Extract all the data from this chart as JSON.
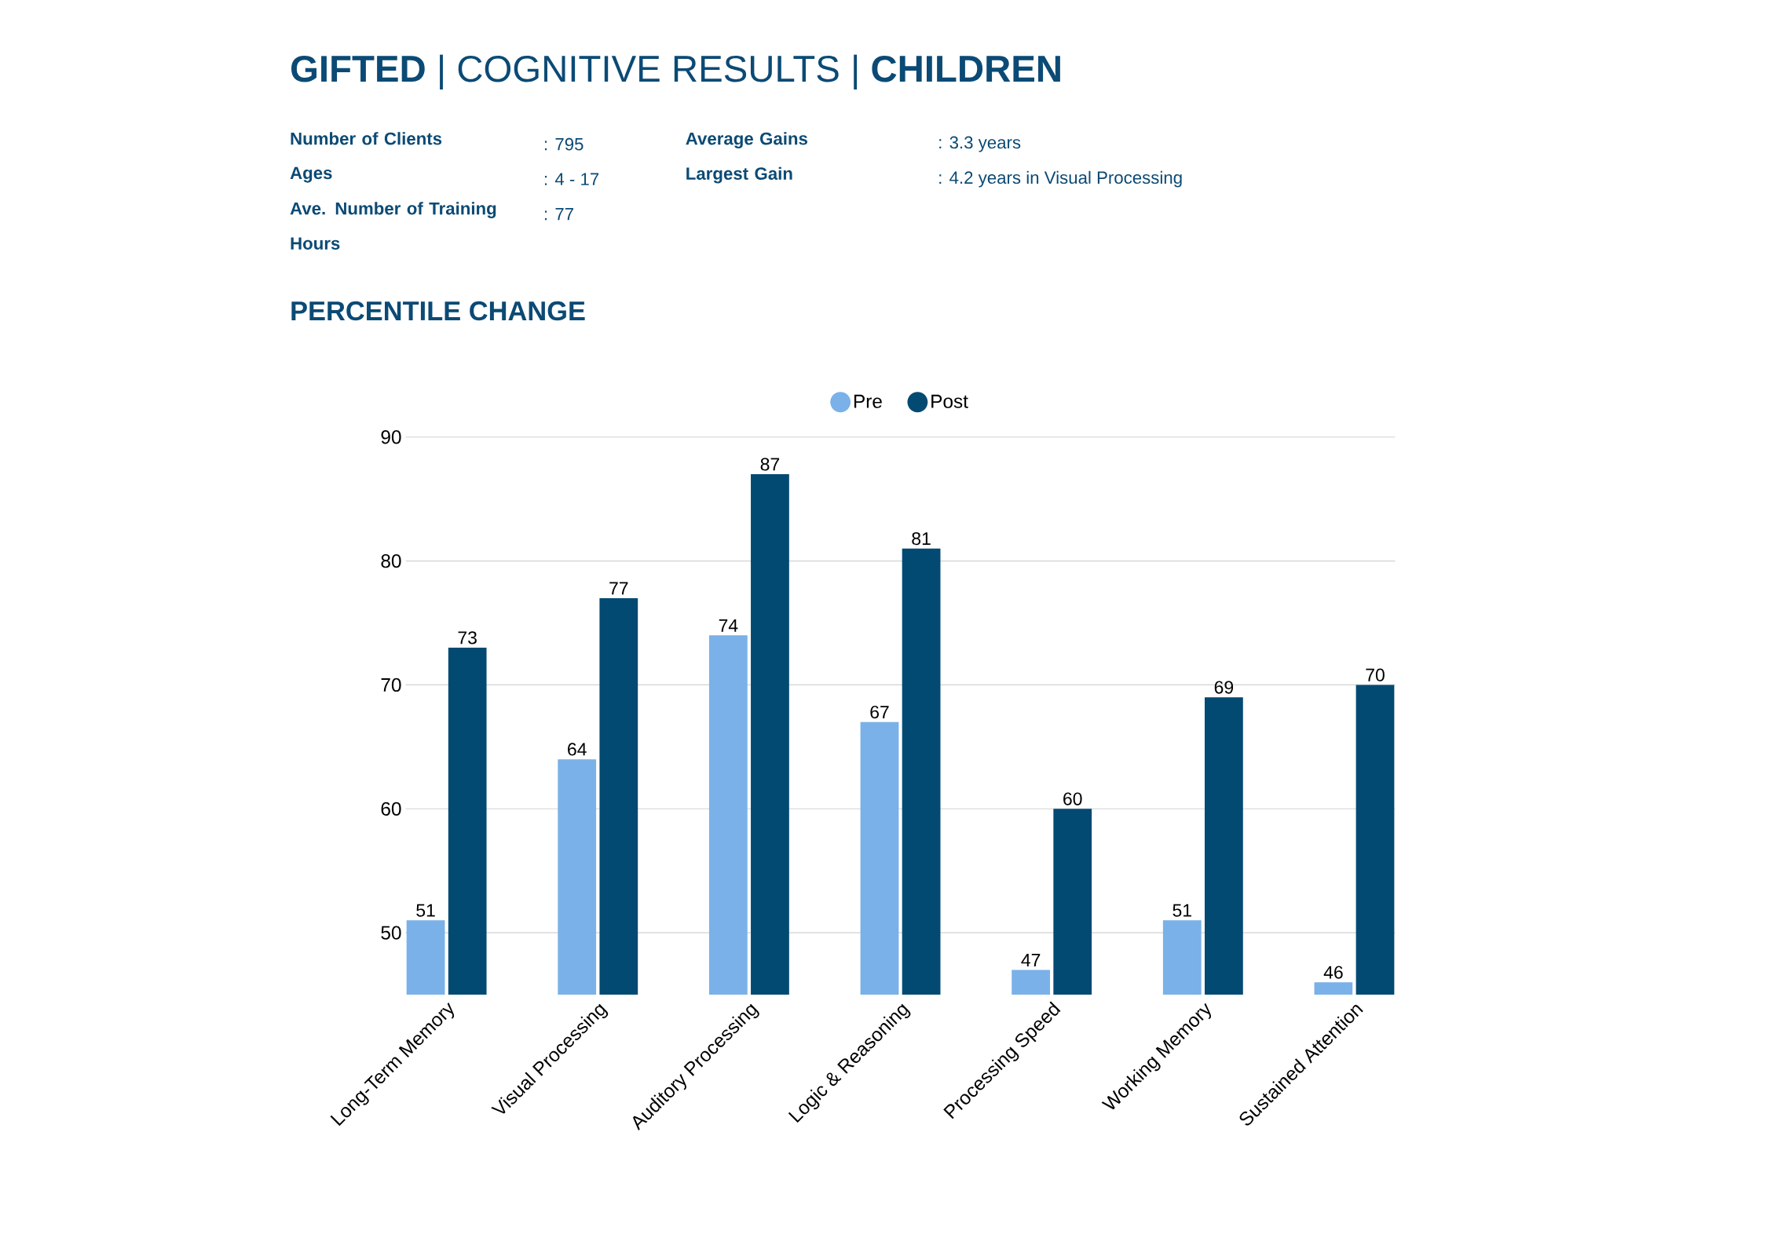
{
  "chart_data": {
    "type": "bar",
    "title": "**GIFTED** | COGNITIVE RESULTS | **CHILDREN**",
    "subtitle": "PERCENTILE CHANGE",
    "annotations": [
      "Number of Clients",
      ": 795",
      "Ages",
      ": 4 - 17",
      "Ave. Number of Training Hours",
      ": 77",
      "Average Gains",
      ": 3.3 years",
      "Largest Gain",
      ": 4.2 years in Visual Processing"
    ],
    "categories": [
      "Long-Term Memory",
      "Visual Processing",
      "Auditory Processing",
      "Logic & Reasoning",
      "Processing Speed",
      "Working Memory",
      "Sustained Attention"
    ],
    "series": [
      {
        "name": "Pre",
        "color": "#7ab1e8",
        "values": [
          51,
          64,
          74,
          67,
          47,
          51,
          46
        ]
      },
      {
        "name": "Post",
        "color": "#034a73",
        "values": [
          73,
          77,
          87,
          81,
          60,
          69,
          70
        ]
      }
    ],
    "ylim": [
      45,
      90
    ],
    "yticks": [
      50,
      60,
      70,
      80,
      90
    ],
    "grid": "y",
    "legend": "top",
    "data_labels": true
  }
}
